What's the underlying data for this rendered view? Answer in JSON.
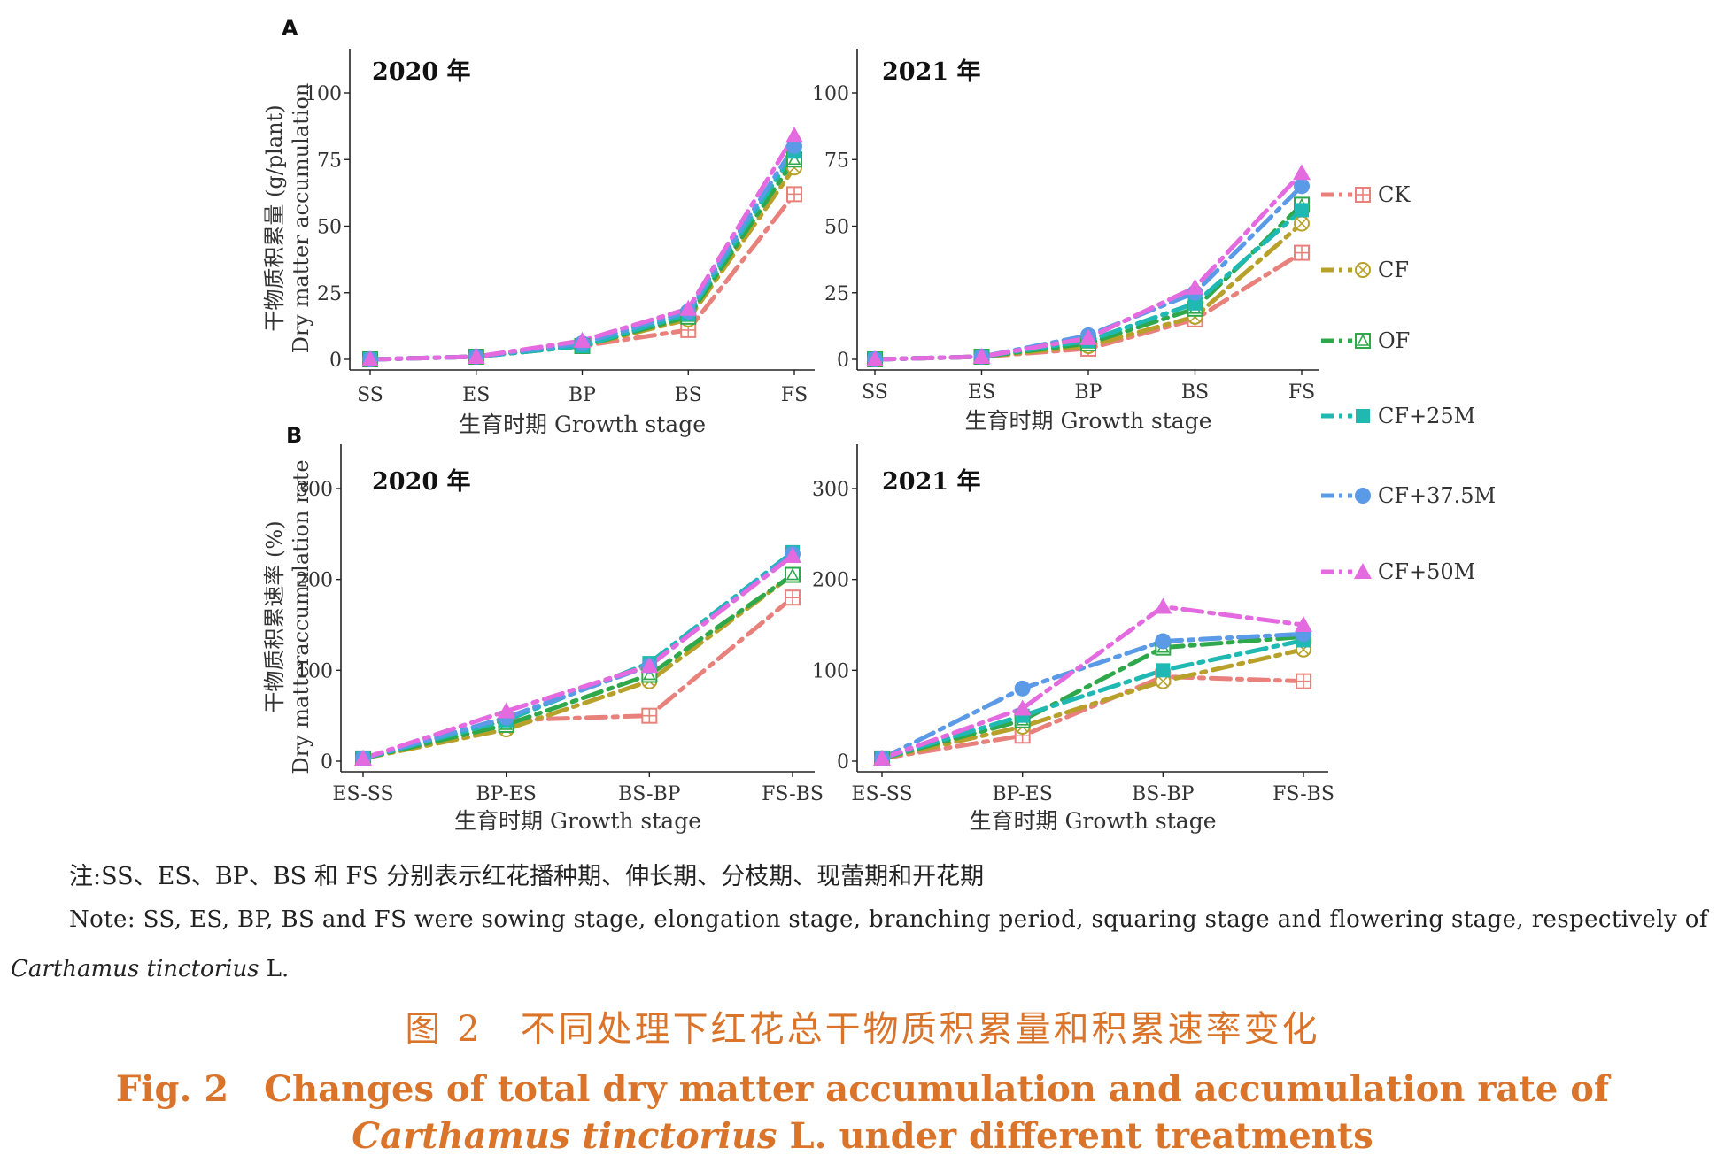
{
  "colors": {
    "CK": "#e8817c",
    "CF": "#b8a12a",
    "OF": "#2ea84a",
    "CF+25M": "#1fb8b2",
    "CF+37.5M": "#5b9ae6",
    "CF+50M": "#e46ae0"
  },
  "legend": [
    {
      "name": "CK",
      "marker": "square-plus"
    },
    {
      "name": "CF",
      "marker": "circle-x"
    },
    {
      "name": "OF",
      "marker": "square-triangle"
    },
    {
      "name": "CF+25M",
      "marker": "square-filled"
    },
    {
      "name": "CF+37.5M",
      "marker": "circle-filled"
    },
    {
      "name": "CF+50M",
      "marker": "triangle-filled"
    }
  ],
  "chart_data": [
    {
      "panel": "A",
      "type": "line",
      "title": "2020 年",
      "xlabel": "生育时期 Growth stage",
      "ylabel_zh": "干物质积累量 (g/plant)",
      "ylabel_en": "Dry matter accumulation",
      "categories": [
        "SS",
        "ES",
        "BP",
        "BS",
        "FS"
      ],
      "ylim": [
        0,
        100
      ],
      "yticks": [
        0,
        25,
        50,
        75,
        100
      ],
      "series": [
        {
          "name": "CK",
          "values": [
            0,
            1,
            5,
            11,
            62
          ]
        },
        {
          "name": "CF",
          "values": [
            0,
            1,
            5,
            15,
            72
          ]
        },
        {
          "name": "OF",
          "values": [
            0,
            1,
            5,
            16,
            75
          ]
        },
        {
          "name": "CF+25M",
          "values": [
            0,
            1,
            5,
            17,
            78
          ]
        },
        {
          "name": "CF+37.5M",
          "values": [
            0,
            1,
            6,
            18,
            80
          ]
        },
        {
          "name": "CF+50M",
          "values": [
            0,
            1,
            7,
            19,
            84
          ]
        }
      ]
    },
    {
      "panel": "",
      "type": "line",
      "title": "2021 年",
      "xlabel": "生育时期 Growth stage",
      "categories": [
        "SS",
        "ES",
        "BP",
        "BS",
        "FS"
      ],
      "ylim": [
        0,
        100
      ],
      "yticks": [
        0,
        25,
        50,
        75,
        100
      ],
      "series": [
        {
          "name": "CK",
          "values": [
            0,
            1,
            4,
            15,
            40
          ]
        },
        {
          "name": "CF",
          "values": [
            0,
            1,
            5,
            16,
            51
          ]
        },
        {
          "name": "OF",
          "values": [
            0,
            1,
            6,
            19,
            58
          ]
        },
        {
          "name": "CF+25M",
          "values": [
            0,
            1,
            7,
            21,
            56
          ]
        },
        {
          "name": "CF+37.5M",
          "values": [
            0,
            1,
            9,
            25,
            65
          ]
        },
        {
          "name": "CF+50M",
          "values": [
            0,
            1,
            8,
            27,
            70
          ]
        }
      ]
    },
    {
      "panel": "B",
      "type": "line",
      "title": "2020 年",
      "xlabel": "生育时期 Growth stage",
      "ylabel_zh": "干物质积累速率 (%)",
      "ylabel_en": "Dry matteraccumulation rate",
      "categories": [
        "ES-SS",
        "BP-ES",
        "BS-BP",
        "FS-BS"
      ],
      "ylim": [
        0,
        300
      ],
      "yticks": [
        0,
        100,
        200,
        300
      ],
      "series": [
        {
          "name": "CK",
          "values": [
            3,
            45,
            50,
            180
          ]
        },
        {
          "name": "CF",
          "values": [
            3,
            35,
            88,
            205
          ]
        },
        {
          "name": "OF",
          "values": [
            3,
            40,
            95,
            205
          ]
        },
        {
          "name": "CF+25M",
          "values": [
            3,
            45,
            108,
            230
          ]
        },
        {
          "name": "CF+37.5M",
          "values": [
            3,
            48,
            105,
            228
          ]
        },
        {
          "name": "CF+50M",
          "values": [
            3,
            55,
            105,
            226
          ]
        }
      ]
    },
    {
      "panel": "",
      "type": "line",
      "title": "2021 年",
      "xlabel": "生育时期 Growth stage",
      "categories": [
        "ES-SS",
        "BP-ES",
        "BS-BP",
        "FS-BS"
      ],
      "ylim": [
        0,
        300
      ],
      "yticks": [
        0,
        100,
        200,
        300
      ],
      "series": [
        {
          "name": "CK",
          "values": [
            3,
            28,
            93,
            88
          ]
        },
        {
          "name": "CF",
          "values": [
            3,
            38,
            88,
            123
          ]
        },
        {
          "name": "OF",
          "values": [
            3,
            45,
            125,
            137
          ]
        },
        {
          "name": "CF+25M",
          "values": [
            3,
            50,
            100,
            133
          ]
        },
        {
          "name": "CF+37.5M",
          "values": [
            3,
            80,
            132,
            140
          ]
        },
        {
          "name": "CF+50M",
          "values": [
            3,
            58,
            170,
            150
          ]
        }
      ]
    }
  ],
  "notes": {
    "zh": "注:SS、ES、BP、BS 和 FS 分别表示红花播种期、伸长期、分枝期、现蕾期和开花期",
    "en_part1": "Note: SS, ES, BP, BS and FS were sowing stage, elongation stage, branching period, squaring stage and flowering stage, respectively of",
    "en_italic": "Carthamus tinctorius",
    "en_tail": " L."
  },
  "caption": {
    "zh": "图 2　不同处理下红花总干物质积累量和积累速率变化",
    "en_line1": "Fig. 2　Changes of total dry matter accumulation and accumulation rate of",
    "en_line2_italic": "Carthamus tinctorius",
    "en_line2_tail": " L.  under different treatments"
  }
}
